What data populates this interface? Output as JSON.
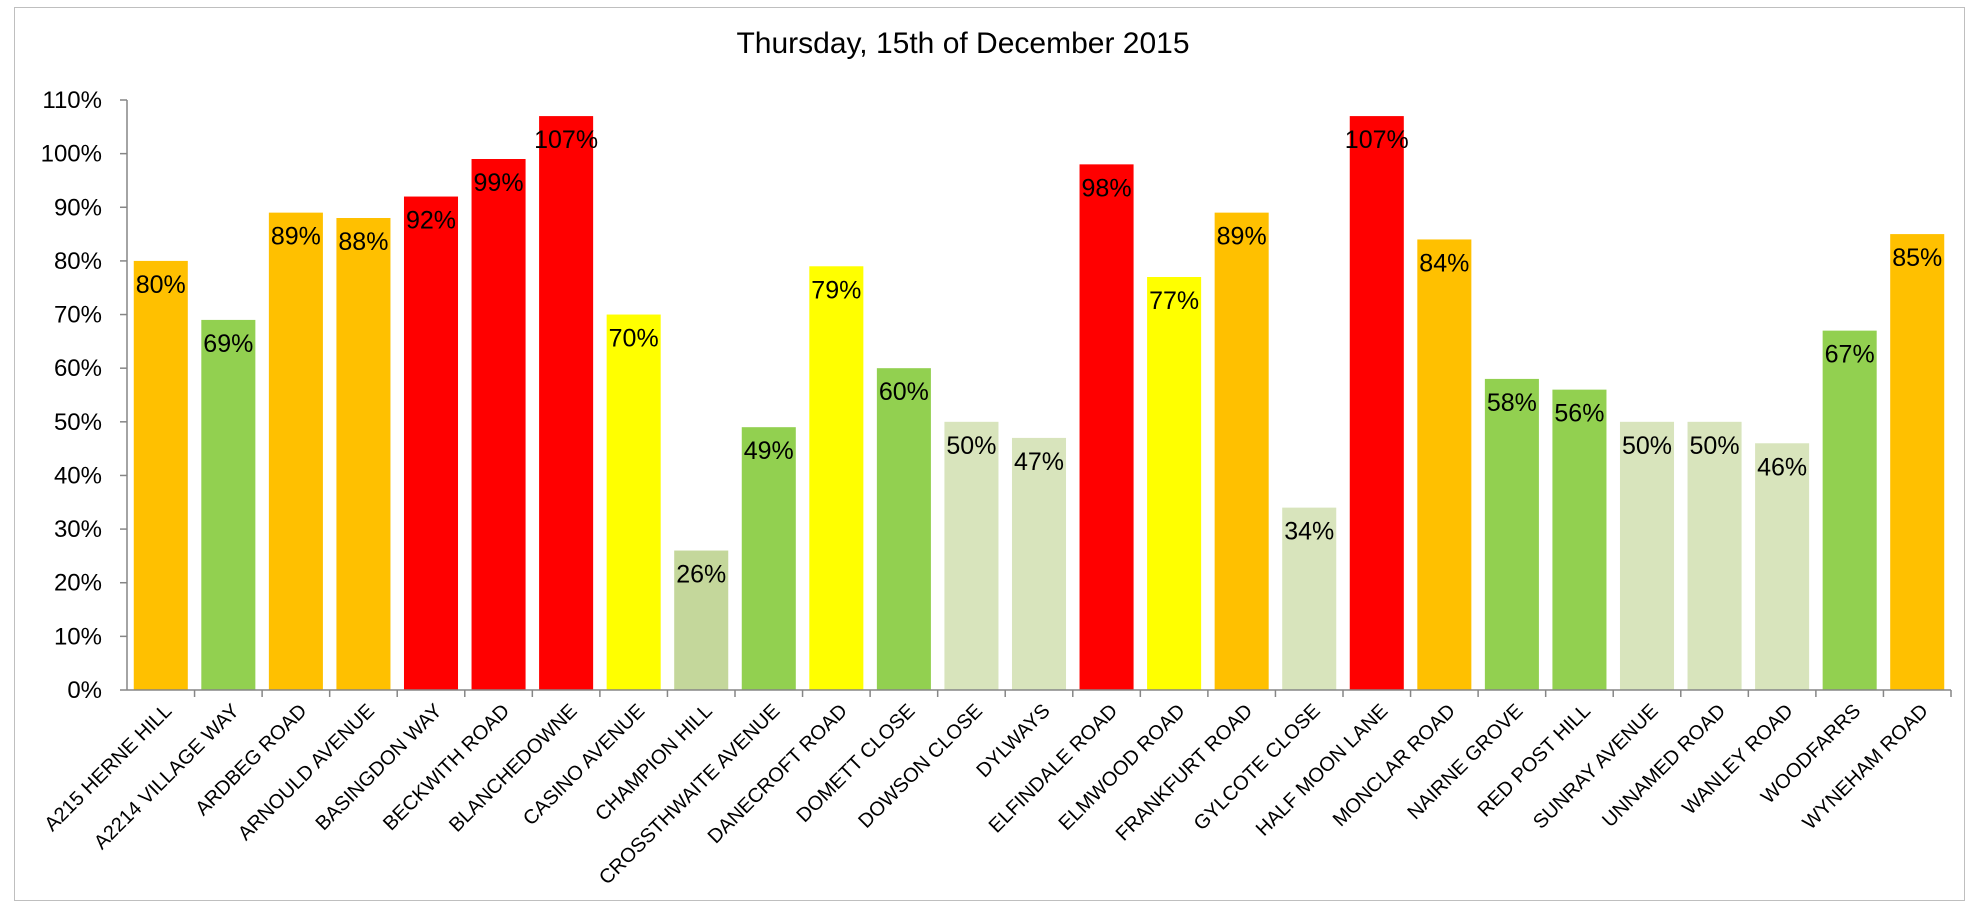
{
  "chart_data": {
    "type": "bar",
    "title": "Thursday, 15th of December 2015",
    "xlabel": "",
    "ylabel": "",
    "ylim": [
      0,
      110
    ],
    "y_tick_step": 10,
    "y_tick_format": "percent",
    "grid": false,
    "legend": "none",
    "categories": [
      "A215 HERNE HILL",
      "A2214 VILLAGE WAY",
      "ARDBEG ROAD",
      "ARNOULD AVENUE",
      "BASINGDON WAY",
      "BECKWITH ROAD",
      "BLANCHEDOWNE",
      "CASINO AVENUE",
      "CHAMPION HILL",
      "CROSSTHWAITE AVENUE",
      "DANECROFT ROAD",
      "DOMETT CLOSE",
      "DOWSON CLOSE",
      "DYLWAYS",
      "ELFINDALE ROAD",
      "ELMWOOD ROAD",
      "FRANKFURT ROAD",
      "GYLCOTE CLOSE",
      "HALF MOON LANE",
      "MONCLAR ROAD",
      "NAIRNE GROVE",
      "RED POST HILL",
      "SUNRAY AVENUE",
      "UNNAMED ROAD",
      "WANLEY ROAD",
      "WOODFARRS",
      "WYNEHAM ROAD"
    ],
    "values": [
      80,
      69,
      89,
      88,
      92,
      99,
      107,
      70,
      26,
      49,
      79,
      60,
      50,
      47,
      98,
      77,
      89,
      34,
      107,
      84,
      58,
      56,
      50,
      50,
      46,
      67,
      85
    ],
    "data_labels": [
      "80%",
      "69%",
      "89%",
      "88%",
      "92%",
      "99%",
      "107%",
      "70%",
      "26%",
      "49%",
      "79%",
      "60%",
      "50%",
      "47%",
      "98%",
      "77%",
      "89%",
      "34%",
      "107%",
      "84%",
      "58%",
      "56%",
      "50%",
      "50%",
      "46%",
      "67%",
      "85%"
    ],
    "colors": [
      "#FFC000",
      "#92D050",
      "#FFC000",
      "#FFC000",
      "#FF0000",
      "#FF0000",
      "#FF0000",
      "#FFFF00",
      "#C4D79B",
      "#92D050",
      "#FFFF00",
      "#92D050",
      "#D8E4BC",
      "#D8E4BC",
      "#FF0000",
      "#FFFF00",
      "#FFC000",
      "#D8E4BC",
      "#FF0000",
      "#FFC000",
      "#92D050",
      "#92D050",
      "#D8E4BC",
      "#D8E4BC",
      "#D8E4BC",
      "#92D050",
      "#FFC000"
    ]
  }
}
